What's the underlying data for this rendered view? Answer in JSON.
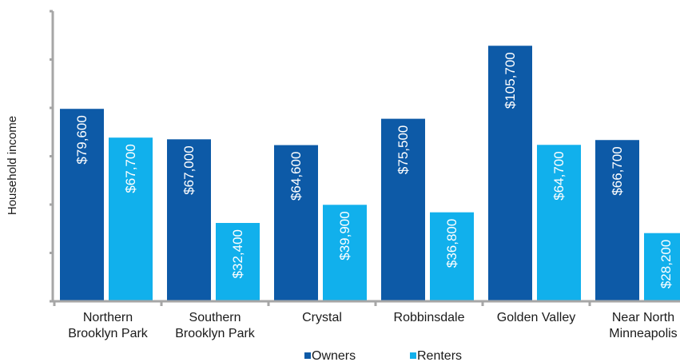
{
  "chart_data": {
    "type": "bar",
    "ylabel": "Household income",
    "xlabel": "",
    "ylim": [
      0,
      120000
    ],
    "categories": [
      [
        "Northern",
        "Brooklyn Park"
      ],
      [
        "Southern",
        "Brooklyn Park"
      ],
      [
        "Crystal"
      ],
      [
        "Robbinsdale"
      ],
      [
        "Golden Valley"
      ],
      [
        "Near North",
        "Minneapolis"
      ]
    ],
    "series": [
      {
        "name": "Owners",
        "color": "#0d5aa7",
        "values": [
          79600,
          67000,
          64600,
          75500,
          105700,
          66700
        ],
        "labels": [
          "$79,600",
          "$67,000",
          "$64,600",
          "$75,500",
          "$105,700",
          "$66,700"
        ]
      },
      {
        "name": "Renters",
        "color": "#11b0ec",
        "values": [
          67700,
          32400,
          39900,
          36800,
          64700,
          28200
        ],
        "labels": [
          "$67,700",
          "$32,400",
          "$39,900",
          "$36,800",
          "$64,700",
          "$28,200"
        ]
      }
    ],
    "legend": "bottom",
    "grid": false,
    "axis_color": "#a6a6a6"
  }
}
